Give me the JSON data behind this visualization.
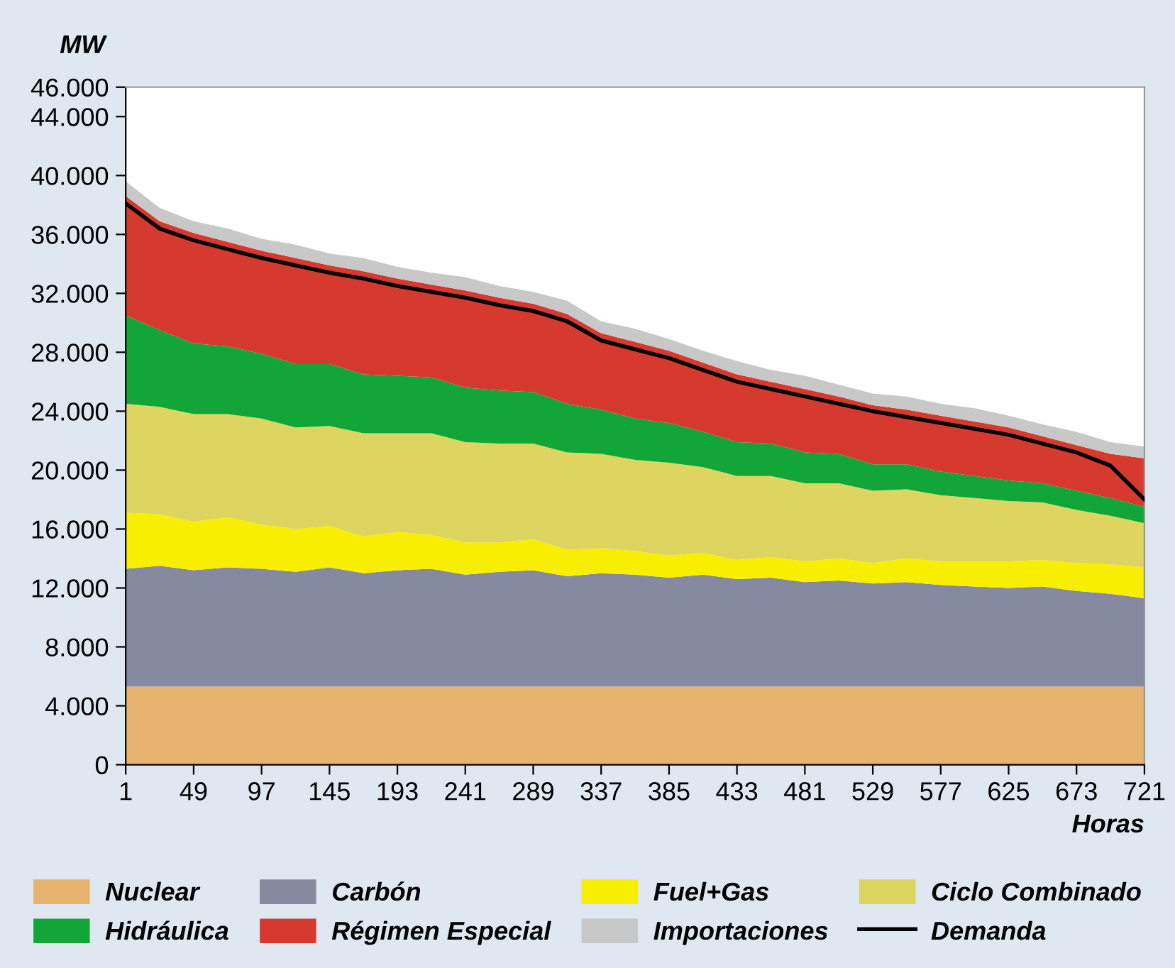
{
  "chart_data": {
    "type": "area",
    "stacked": true,
    "xlabel": "Horas",
    "ylabel": "MW",
    "x": [
      1,
      25,
      49,
      73,
      97,
      121,
      145,
      169,
      193,
      217,
      241,
      265,
      289,
      313,
      337,
      361,
      385,
      409,
      433,
      457,
      481,
      505,
      529,
      553,
      577,
      601,
      625,
      649,
      673,
      697,
      721
    ],
    "xlim": [
      1,
      721
    ],
    "xticks": [
      1,
      49,
      97,
      145,
      193,
      241,
      289,
      337,
      385,
      433,
      481,
      529,
      577,
      625,
      673,
      721
    ],
    "ylim": [
      0,
      46000
    ],
    "yticks": [
      {
        "value": 0,
        "label": "0"
      },
      {
        "value": 4000,
        "label": "4.000"
      },
      {
        "value": 8000,
        "label": "8.000"
      },
      {
        "value": 12000,
        "label": "12.000"
      },
      {
        "value": 16000,
        "label": "16.000"
      },
      {
        "value": 20000,
        "label": "20.000"
      },
      {
        "value": 24000,
        "label": "24.000"
      },
      {
        "value": 28000,
        "label": "28.000"
      },
      {
        "value": 32000,
        "label": "32.000"
      },
      {
        "value": 36000,
        "label": "36.000"
      },
      {
        "value": 40000,
        "label": "40.000"
      },
      {
        "value": 44000,
        "label": "44.000"
      },
      {
        "value": 46000,
        "label": "46.000"
      }
    ],
    "grid": false,
    "legend": "bottom",
    "series": [
      {
        "name": "Nuclear",
        "color": "#e6b46e",
        "values": [
          5300,
          5300,
          5300,
          5300,
          5300,
          5300,
          5300,
          5300,
          5300,
          5300,
          5300,
          5300,
          5300,
          5300,
          5300,
          5300,
          5300,
          5300,
          5300,
          5300,
          5300,
          5300,
          5300,
          5300,
          5300,
          5300,
          5300,
          5300,
          5300,
          5300,
          5300
        ]
      },
      {
        "name": "Carbón",
        "color": "#868aa0",
        "values": [
          8000,
          8200,
          7900,
          8100,
          8000,
          7800,
          8100,
          7700,
          7900,
          8000,
          7600,
          7800,
          7900,
          7500,
          7700,
          7600,
          7400,
          7600,
          7300,
          7400,
          7100,
          7200,
          7000,
          7100,
          6900,
          6800,
          6700,
          6800,
          6500,
          6300,
          6000
        ]
      },
      {
        "name": "Fuel+Gas",
        "color": "#f8ef00",
        "values": [
          3800,
          3500,
          3300,
          3400,
          3000,
          2900,
          2800,
          2500,
          2600,
          2300,
          2200,
          2000,
          2100,
          1800,
          1700,
          1600,
          1500,
          1500,
          1300,
          1400,
          1400,
          1500,
          1400,
          1600,
          1600,
          1700,
          1800,
          1800,
          1900,
          2000,
          2100
        ]
      },
      {
        "name": "Ciclo Combinado",
        "color": "#ddd55f",
        "values": [
          7400,
          7300,
          7300,
          7000,
          7200,
          6900,
          6800,
          7000,
          6700,
          6900,
          6800,
          6700,
          6500,
          6600,
          6400,
          6200,
          6300,
          5800,
          5700,
          5500,
          5300,
          5100,
          4900,
          4700,
          4500,
          4300,
          4100,
          3900,
          3600,
          3300,
          3000
        ]
      },
      {
        "name": "Hidráulica",
        "color": "#12a537",
        "values": [
          6000,
          5200,
          4800,
          4600,
          4400,
          4300,
          4200,
          4000,
          3900,
          3800,
          3700,
          3600,
          3500,
          3300,
          3000,
          2800,
          2700,
          2400,
          2300,
          2200,
          2100,
          2000,
          1800,
          1700,
          1600,
          1500,
          1400,
          1300,
          1300,
          1200,
          1100
        ]
      },
      {
        "name": "Régimen Especial",
        "color": "#d63a2e",
        "values": [
          8100,
          7400,
          7500,
          7100,
          7000,
          7200,
          6700,
          7000,
          6600,
          6300,
          6600,
          6300,
          6000,
          6100,
          5200,
          5200,
          4900,
          4700,
          4600,
          4200,
          4300,
          3900,
          4000,
          3700,
          3800,
          3700,
          3600,
          3200,
          3100,
          3000,
          3300
        ]
      },
      {
        "name": "Importaciones",
        "color": "#c8c8c8",
        "values": [
          1000,
          900,
          800,
          900,
          800,
          900,
          800,
          900,
          800,
          800,
          900,
          800,
          800,
          900,
          800,
          900,
          800,
          800,
          900,
          800,
          900,
          800,
          800,
          900,
          800,
          900,
          800,
          800,
          900,
          800,
          800
        ]
      },
      {
        "name": "Demanda",
        "type": "line",
        "color": "#000000",
        "values": [
          38100,
          36400,
          35600,
          35000,
          34400,
          33900,
          33400,
          33000,
          32500,
          32100,
          31700,
          31200,
          30800,
          30100,
          28800,
          28200,
          27600,
          26800,
          26000,
          25500,
          25000,
          24500,
          24000,
          23600,
          23200,
          22800,
          22400,
          21800,
          21200,
          20300,
          18000
        ]
      }
    ]
  }
}
